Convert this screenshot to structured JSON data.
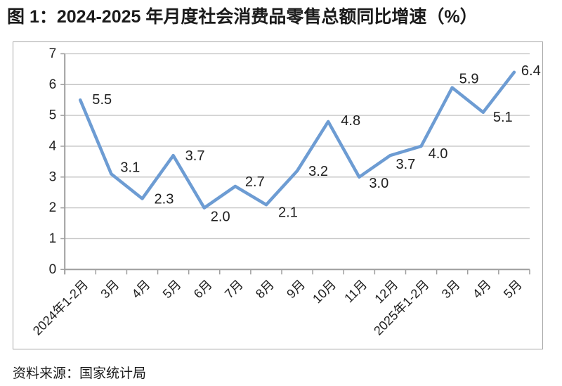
{
  "page": {
    "title": "图 1：2024-2025 年月度社会消费品零售总额同比增速（%）",
    "source": "资料来源：国家统计局"
  },
  "chart_data": {
    "type": "line",
    "title": "2024-2025 年月度社会消费品零售总额同比增速（%）",
    "categories": [
      "2024年1-2月",
      "3月",
      "4月",
      "5月",
      "6月",
      "7月",
      "8月",
      "9月",
      "10月",
      "11月",
      "12月",
      "2025年1-2月",
      "3月",
      "4月",
      "5月"
    ],
    "values": [
      5.5,
      3.1,
      2.3,
      3.7,
      2.0,
      2.7,
      2.1,
      3.2,
      4.8,
      3.0,
      3.7,
      4.0,
      5.9,
      5.1,
      6.4
    ],
    "data_labels": [
      "5.5",
      "3.1",
      "2.3",
      "3.7",
      "2.0",
      "2.7",
      "2.1",
      "3.2",
      "4.8",
      "3.0",
      "3.7",
      "4.0",
      "5.9",
      "5.1",
      "6.4"
    ],
    "xlabel": "",
    "ylabel": "",
    "ylim": [
      0,
      7
    ],
    "yticks": [
      0,
      1,
      2,
      3,
      4,
      5,
      6,
      7
    ],
    "grid": true,
    "legend": "none",
    "colors": {
      "line": "#6d9cd3",
      "gridline": "#c4c4c4",
      "axis": "#9e9e9e",
      "label_text": "#1f1f1f"
    }
  }
}
